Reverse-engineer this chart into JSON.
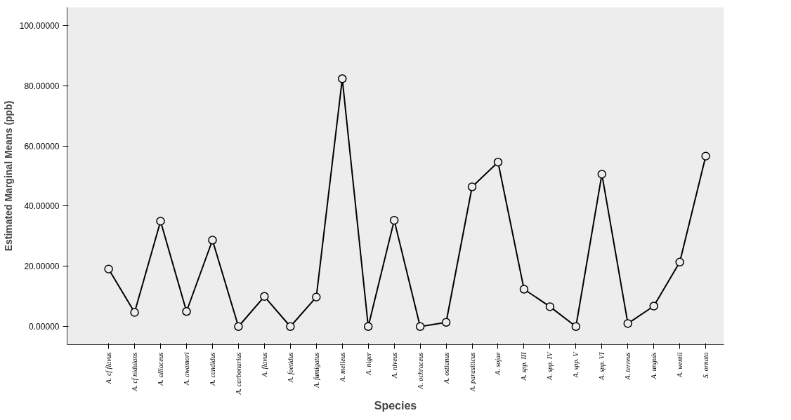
{
  "chart_data": {
    "type": "line",
    "xlabel": "Species",
    "ylabel": "Estimated Marginal Means (ppb)",
    "categories": [
      "A. cf flavus",
      "A. cf nidulans",
      "A. alliaceus",
      "A. awamori",
      "A. candidus",
      "A. carbonarius",
      "A. flavus",
      "A. foetidus",
      "A. fumigatus",
      "A. melleus",
      "A. niger",
      "A. niveus",
      "A. ochraceus",
      "A. ostianus",
      "A. parasiticus",
      "A. sojae",
      "A. spp. III",
      "A. spp. IV",
      "A. spp. V",
      "A. spp. VI",
      "A. terreus",
      "A. unguis",
      "A. wentii",
      "S. ornata"
    ],
    "series": [
      {
        "color": "#000000",
        "values": [
          19.1,
          4.7,
          35.0,
          5.0,
          28.7,
          0.0,
          10.0,
          0.0,
          9.8,
          82.3,
          0.0,
          35.3,
          0.0,
          1.4,
          46.4,
          54.6,
          12.4,
          6.6,
          0.0,
          50.6,
          1.0,
          6.8,
          21.4,
          56.6
        ]
      }
    ],
    "ylim": [
      -6,
      106
    ],
    "yticks": [
      {
        "value": 0,
        "label": "0.00000"
      },
      {
        "value": 20,
        "label": "20.00000"
      },
      {
        "value": 40,
        "label": "40.00000"
      },
      {
        "value": 60,
        "label": "60.00000"
      },
      {
        "value": 80,
        "label": "80.00000"
      },
      {
        "value": 100,
        "label": "100.00000"
      }
    ],
    "marker": "circle",
    "line_style": "solid",
    "grid": false
  }
}
